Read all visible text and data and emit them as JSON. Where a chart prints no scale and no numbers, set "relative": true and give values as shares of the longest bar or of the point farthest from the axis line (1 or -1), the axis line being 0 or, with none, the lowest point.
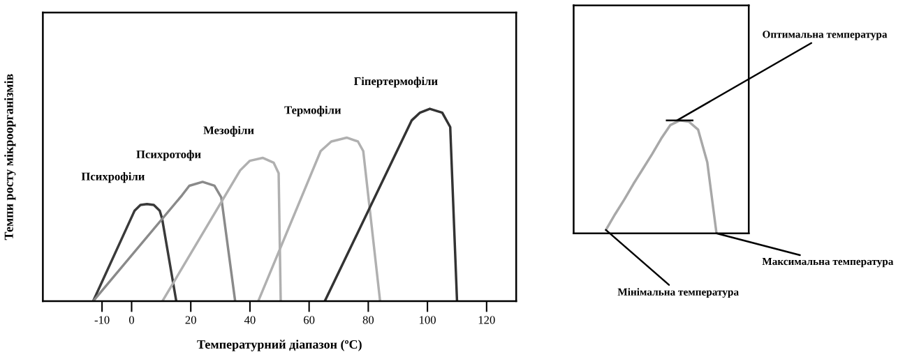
{
  "chart_data": [
    {
      "type": "line",
      "relative": true,
      "xlabel": "Температурний діапазон (ºC)",
      "ylabel": "Темпи росту мікроорганізмів",
      "xlim": [
        -30,
        130
      ],
      "xticks": [
        -10,
        0,
        20,
        40,
        60,
        80,
        100,
        120
      ],
      "series": [
        {
          "name": "Психрофіли",
          "color": "#3a3a3a",
          "x": [
            -13,
            -0.5,
            1,
            3,
            5.2,
            7.5,
            9.5,
            10.3,
            15.1
          ],
          "values": [
            0,
            0.42,
            0.47,
            0.5,
            0.505,
            0.5,
            0.47,
            0.43,
            0
          ]
        },
        {
          "name": "Психротофи",
          "color": "#8a8a8a",
          "x": [
            -13,
            17,
            19.5,
            24,
            28,
            30.3,
            35
          ],
          "values": [
            0,
            0.55,
            0.6,
            0.62,
            0.6,
            0.54,
            0
          ]
        },
        {
          "name": "Мезофіли",
          "color": "#b0b0b0",
          "x": [
            10.4,
            36.7,
            40,
            44.3,
            48,
            49.7,
            50.4
          ],
          "values": [
            0,
            0.68,
            0.73,
            0.745,
            0.72,
            0.665,
            0
          ]
        },
        {
          "name": "Термофіли",
          "color": "#b0b0b0",
          "x": [
            42.8,
            63.9,
            67.5,
            72.7,
            76.5,
            78.3,
            84
          ],
          "values": [
            0,
            0.78,
            0.83,
            0.85,
            0.83,
            0.78,
            0
          ]
        },
        {
          "name": "Гіпертермофіли",
          "color": "#333333",
          "x": [
            65.3,
            94.7,
            97.5,
            100.8,
            105,
            107.7,
            110
          ],
          "values": [
            0,
            0.94,
            0.98,
            1.0,
            0.98,
            0.905,
            0
          ]
        }
      ]
    },
    {
      "type": "line",
      "relative": true,
      "categories": [
        null,
        null,
        null,
        null,
        null,
        null,
        null,
        null,
        null,
        null,
        null,
        null,
        null,
        null,
        null,
        null,
        null,
        null,
        null
      ],
      "series": [
        {
          "color": "#a8a8a8",
          "values": [
            null,
            null,
            null,
            0.03,
            0.17,
            0.3,
            0.44,
            0.57,
            0.7,
            0.84,
            0.96,
            1.0,
            0.99,
            0.92,
            0.63,
            0,
            null,
            null,
            null
          ]
        }
      ],
      "annotations": [
        "Оптимальна температура",
        "Мінімальна температура",
        "Максимальна температура"
      ]
    }
  ]
}
